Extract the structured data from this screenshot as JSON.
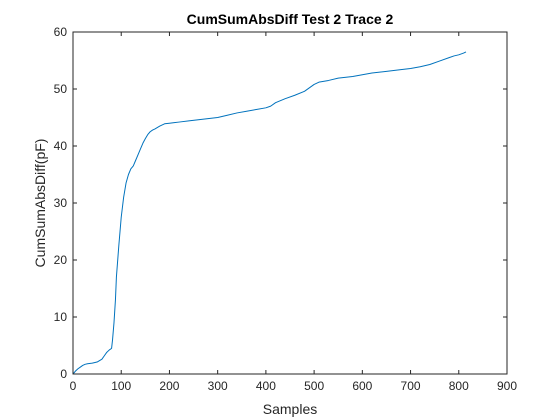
{
  "chart_data": {
    "type": "line",
    "title": "CumSumAbsDiff Test 2 Trace 2",
    "xlabel": "Samples",
    "ylabel": "CumSumAbsDiff(pF)",
    "xlim": [
      0,
      900
    ],
    "ylim": [
      0,
      60
    ],
    "xticks": [
      0,
      100,
      200,
      300,
      400,
      500,
      600,
      700,
      800,
      900
    ],
    "yticks": [
      0,
      10,
      20,
      30,
      40,
      50,
      60
    ],
    "grid": false,
    "legend": "none",
    "series": [
      {
        "color": "#0072BD",
        "x": [
          0,
          5,
          10,
          15,
          20,
          25,
          30,
          40,
          50,
          60,
          65,
          70,
          75,
          80,
          82,
          85,
          88,
          90,
          95,
          100,
          105,
          110,
          115,
          120,
          125,
          130,
          135,
          140,
          145,
          150,
          155,
          160,
          165,
          170,
          180,
          190,
          200,
          210,
          220,
          240,
          260,
          280,
          300,
          320,
          340,
          360,
          380,
          400,
          410,
          420,
          440,
          460,
          480,
          500,
          510,
          530,
          550,
          580,
          600,
          620,
          650,
          680,
          700,
          720,
          740,
          760,
          780,
          790,
          800,
          810,
          815
        ],
        "y": [
          0,
          0.5,
          0.9,
          1.2,
          1.5,
          1.7,
          1.8,
          1.9,
          2.1,
          2.6,
          3.2,
          3.8,
          4.2,
          4.5,
          6.0,
          9.0,
          13.0,
          17.0,
          22.5,
          27.5,
          31.0,
          33.5,
          35.0,
          36.0,
          36.5,
          37.5,
          38.5,
          39.5,
          40.5,
          41.3,
          42.0,
          42.5,
          42.8,
          43.0,
          43.5,
          43.9,
          44.0,
          44.1,
          44.2,
          44.4,
          44.6,
          44.8,
          45.0,
          45.4,
          45.8,
          46.1,
          46.4,
          46.7,
          47.0,
          47.6,
          48.3,
          48.9,
          49.6,
          50.8,
          51.2,
          51.5,
          51.9,
          52.2,
          52.5,
          52.8,
          53.1,
          53.4,
          53.6,
          53.9,
          54.3,
          54.9,
          55.5,
          55.8,
          56.0,
          56.3,
          56.5
        ]
      }
    ]
  }
}
